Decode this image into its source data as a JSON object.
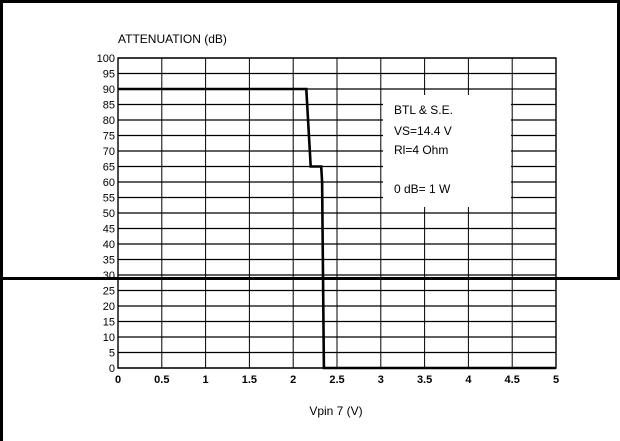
{
  "chart_data": {
    "type": "line",
    "title": "",
    "ylabel": "ATTENUATION (dB)",
    "xlabel": "Vpin 7 (V)",
    "xlim": [
      0,
      5
    ],
    "ylim": [
      0,
      100
    ],
    "x_ticks": [
      "0",
      "0.5",
      "1",
      "1.5",
      "2",
      "2.5",
      "3",
      "3.5",
      "4",
      "4.5",
      "5"
    ],
    "y_ticks": [
      "0",
      "5",
      "10",
      "15",
      "20",
      "25",
      "30",
      "35",
      "40",
      "45",
      "50",
      "55",
      "60",
      "65",
      "70",
      "75",
      "80",
      "85",
      "90",
      "95",
      "100"
    ],
    "grid": true,
    "series": [
      {
        "x": [
          0,
          2.15,
          2.2,
          2.32,
          2.33,
          2.35,
          5
        ],
        "y": [
          90,
          90,
          65,
          65,
          60,
          0,
          0
        ]
      }
    ],
    "annotations": [
      "BTL & S.E.",
      "VS=14.4 V",
      "Rl=4 Ohm",
      "0 dB= 1 W"
    ]
  }
}
